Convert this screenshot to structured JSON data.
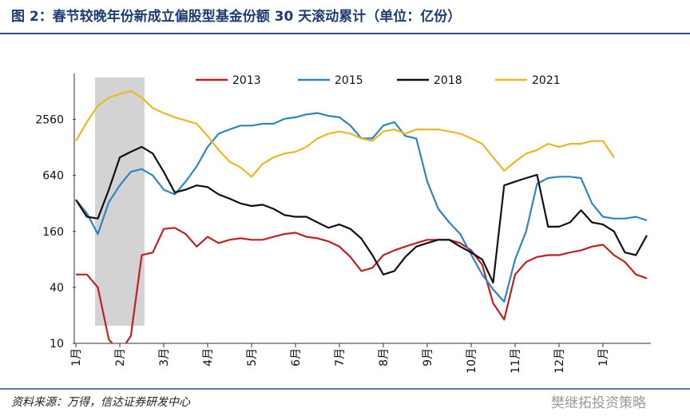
{
  "chart_data": {
    "type": "line",
    "title": "图 2：春节较晚年份新成立偏股型基金份额 30 天滚动累计（单位：亿份）",
    "source": "资料来源：万得，信达证券研发中心",
    "watermark": "樊继拓投资策略",
    "categories": [
      "1月",
      null,
      null,
      null,
      "2月",
      null,
      null,
      null,
      "3月",
      null,
      null,
      null,
      "4月",
      null,
      null,
      null,
      "5月",
      null,
      null,
      null,
      "6月",
      null,
      null,
      null,
      "7月",
      null,
      null,
      null,
      "8月",
      null,
      null,
      null,
      "9月",
      null,
      null,
      null,
      "10月",
      null,
      null,
      null,
      "11月",
      null,
      null,
      null,
      "12月",
      null,
      null,
      null,
      "1月",
      null,
      null,
      null,
      null
    ],
    "ylog": true,
    "ylim": [
      10,
      8000
    ],
    "yticks": [
      10,
      40,
      160,
      640,
      2560
    ],
    "shaded_range": [
      1.75,
      6.25
    ],
    "legend": "top",
    "series": [
      {
        "name": "2013",
        "color": "#c0201f",
        "values": [
          55,
          55,
          40,
          11,
          8,
          12,
          89,
          95,
          170,
          175,
          150,
          110,
          140,
          120,
          130,
          135,
          130,
          130,
          140,
          150,
          155,
          140,
          135,
          125,
          110,
          85,
          60,
          65,
          89,
          100,
          110,
          120,
          130,
          130,
          130,
          120,
          100,
          70,
          27,
          18,
          55,
          75,
          85,
          89,
          89,
          95,
          100,
          110,
          115,
          89,
          75,
          55,
          50
        ]
      },
      {
        "name": "2015",
        "color": "#2e86c1",
        "values": [
          350,
          250,
          150,
          330,
          500,
          700,
          750,
          640,
          450,
          400,
          550,
          800,
          1300,
          1800,
          2000,
          2200,
          2200,
          2300,
          2300,
          2600,
          2700,
          2900,
          3000,
          2800,
          2700,
          2200,
          1600,
          1600,
          2200,
          2400,
          1700,
          1600,
          550,
          280,
          200,
          150,
          90,
          55,
          38,
          28,
          80,
          160,
          520,
          600,
          620,
          620,
          600,
          320,
          230,
          220,
          220,
          230,
          210
        ]
      },
      {
        "name": "2018",
        "color": "#111111",
        "values": [
          350,
          230,
          220,
          450,
          1000,
          1150,
          1300,
          1100,
          700,
          420,
          450,
          500,
          480,
          400,
          360,
          320,
          300,
          310,
          280,
          240,
          230,
          230,
          200,
          175,
          190,
          170,
          134,
          89,
          55,
          60,
          85,
          110,
          120,
          130,
          130,
          110,
          95,
          80,
          45,
          500,
          550,
          600,
          650,
          180,
          180,
          200,
          270,
          200,
          190,
          160,
          95,
          89,
          145
        ]
      },
      {
        "name": "2021",
        "color": "#e8b923",
        "values": [
          1500,
          2400,
          3600,
          4400,
          4800,
          5200,
          4400,
          3400,
          3000,
          2700,
          2500,
          2300,
          1700,
          1200,
          900,
          780,
          620,
          850,
          1000,
          1100,
          1150,
          1300,
          1600,
          1800,
          1900,
          1800,
          1600,
          1500,
          1900,
          2000,
          1800,
          2000,
          2000,
          2000,
          1900,
          1800,
          1600,
          1400,
          1000,
          720,
          900,
          1100,
          1200,
          1400,
          1300,
          1400,
          1400,
          1500,
          1500,
          1000,
          null,
          null,
          null
        ]
      }
    ]
  }
}
